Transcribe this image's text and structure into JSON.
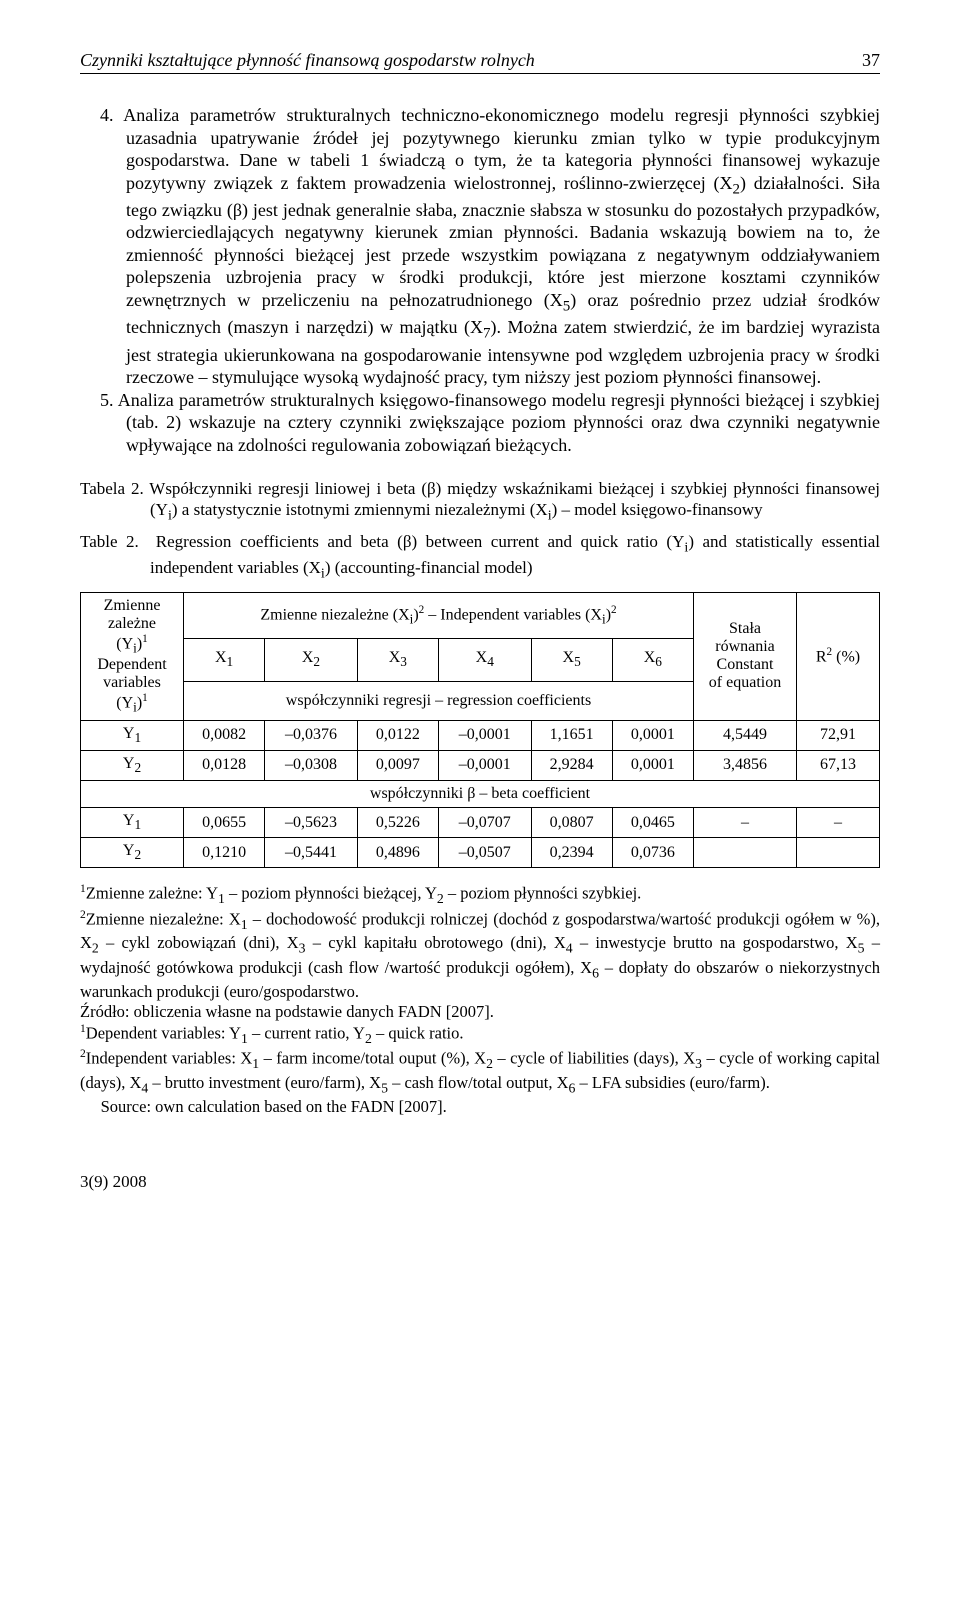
{
  "header": {
    "running_title": "Czynniki kształtujące płynność finansową gospodarstw rolnych",
    "page_number": "37"
  },
  "para4_html": "4. Analiza parametrów strukturalnych techniczno-ekonomicznego modelu regresji płynności szybkiej uzasadnia upatrywanie źródeł jej pozytywnego kierunku zmian tylko w typie produkcyjnym gospodarstwa. Dane w tabeli 1 świadczą o tym, że ta kategoria płynności finansowej wykazuje pozytywny związek z faktem prowadzenia wielostronnej, roślinno-zwierzęcej (X<sub>2</sub>) działalności. Siła tego związku (β) jest jednak generalnie słaba, znacznie słabsza w stosunku do pozostałych przypadków, odzwierciedlających negatywny kierunek zmian płynności. Badania wskazują bowiem na to, że zmienność płynności bieżącej jest przede wszystkim powiązana z negatywnym oddziaływaniem polepszenia uzbrojenia pracy w środki produkcji, które jest mierzone kosztami czynników zewnętrznych w przeliczeniu na pełnozatrudnionego (X<sub>5</sub>) oraz pośrednio przez udział środków technicznych (maszyn i narzędzi) w majątku (X<sub>7</sub>). Można zatem stwierdzić, że im bardziej wyrazista jest strategia ukierunkowana na gospodarowanie intensywne pod względem uzbrojenia pracy w środki rzeczowe – stymulujące wysoką wydajność pracy, tym niższy jest poziom płynności finansowej.",
  "para5_html": "5. Analiza parametrów strukturalnych księgowo-finansowego modelu regresji płynności bieżącej i szybkiej (tab. 2) wskazuje na cztery czynniki zwiększające poziom płynności oraz dwa czynniki negatywnie wpływające na zdolności regulowania zobowiązań bieżących.",
  "table2": {
    "caption_pl_html": "Tabela 2. Współczynniki regresji liniowej i beta (β) między wskaźnikami bieżącej i szybkiej płynności finansowej (Y<sub>i</sub>) a statystycznie istotnymi zmiennymi niezależnymi (X<sub>i</sub>) – model księgowo-finansowy",
    "caption_en_html": "Table 2.&nbsp; Regression coefficients and beta (β) between current and quick ratio (Y<sub>i</sub>) and statistically essential independent variables (X<sub>i</sub>) (accounting-financial model)",
    "col_left_html": "Zmienne<br>zależne<br>(Y<sub>i</sub>)<sup>1</sup><br>Dependent<br>variables<br>(Y<sub>i</sub>)<sup>1</sup>",
    "indep_header_html": "Zmienne niezależne (X<sub>i</sub>)<sup>2</sup> – Independent variables (X<sub>i</sub>)<sup>2</sup>",
    "x_labels_html": [
      "X<sub>1</sub>",
      "X<sub>2</sub>",
      "X<sub>3</sub>",
      "X<sub>4</sub>",
      "X<sub>5</sub>",
      "X<sub>6</sub>"
    ],
    "coeff_label": "współczynniki regresji – regression coefficients",
    "const_label_html": "Stała<br>równania<br>Constant<br>of equation",
    "r2_label_html": "R<sup>2</sup> (%)",
    "rows_regression": [
      {
        "y_html": "Y<sub>1</sub>",
        "x": [
          "0,0082",
          "–0,0376",
          "0,0122",
          "–0,0001",
          "1,1651",
          "0,0001"
        ],
        "const": "4,5449",
        "r2": "72,91"
      },
      {
        "y_html": "Y<sub>2</sub>",
        "x": [
          "0,0128",
          "–0,0308",
          "0,0097",
          "–0,0001",
          "2,9284",
          "0,0001"
        ],
        "const": "3,4856",
        "r2": "67,13"
      }
    ],
    "beta_label": "współczynniki β – beta coefficient",
    "rows_beta": [
      {
        "y_html": "Y<sub>1</sub>",
        "x": [
          "0,0655",
          "–0,5623",
          "0,5226",
          "–0,0707",
          "0,0807",
          "0,0465"
        ],
        "const": "–",
        "r2": "–"
      },
      {
        "y_html": "Y<sub>2</sub>",
        "x": [
          "0,1210",
          "–0,5441",
          "0,4896",
          "–0,0507",
          "0,2394",
          "0,0736"
        ],
        "const": "",
        "r2": ""
      }
    ]
  },
  "footnotes_html": [
    "<sup>1</sup>Zmienne zależne: Y<sub>1</sub> – poziom płynności bieżącej, Y<sub>2</sub> – poziom płynności szybkiej.",
    "<sup>2</sup>Zmienne niezależne: X<sub>1</sub> – dochodowość produkcji rolniczej (dochód z gospodarstwa/wartość produkcji ogółem w %), X<sub>2</sub> – cykl zobowiązań (dni), X<sub>3</sub> – cykl kapitału obrotowego (dni), X<sub>4</sub> – inwestycje brutto na gospodarstwo, X<sub>5</sub> – wydajność gotówkowa produkcji (cash flow /wartość produkcji ogółem), X<sub>6</sub> – dopłaty do obszarów o niekorzystnych warunkach produkcji (euro/gospodarstwo.",
    "Źródło: obliczenia własne na podstawie danych FADN [2007].",
    "<sup>1</sup>Dependent variables: Y<sub>1</sub> – current ratio, Y<sub>2</sub> – quick ratio.",
    "<sup>2</sup>Independent variables: X<sub>1</sub> – farm income/total ouput (%), X<sub>2</sub> – cycle of liabilities (days), X<sub>3</sub> – cycle of working capital (days), X<sub>4</sub> – brutto investment (euro/farm), X<sub>5</sub> – cash flow/total output, X<sub>6</sub> – LFA subsidies (euro/farm).",
    "&nbsp;&nbsp;&nbsp;&nbsp;&nbsp;Source: own calculation based on the FADN [2007]."
  ],
  "footer": "3(9) 2008"
}
